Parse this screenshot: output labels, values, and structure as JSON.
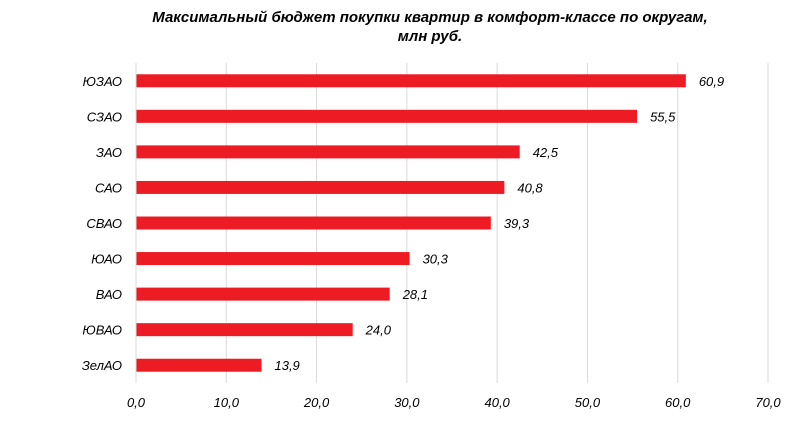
{
  "chart_data": {
    "type": "bar",
    "orientation": "horizontal",
    "title_line1": "Максимальный бюджет покупки квартир в комфорт-классе по округам,",
    "title_line2": "млн руб.",
    "categories": [
      "ЮЗАО",
      "СЗАО",
      "ЗАО",
      "САО",
      "СВАО",
      "ЮАО",
      "ВАО",
      "ЮВАО",
      "ЗелАО"
    ],
    "values": [
      60.9,
      55.5,
      42.5,
      40.8,
      39.3,
      30.3,
      28.1,
      24.0,
      13.9
    ],
    "value_labels": [
      "60,9",
      "55,5",
      "42,5",
      "40,8",
      "39,3",
      "30,3",
      "28,1",
      "24,0",
      "13,9"
    ],
    "xlim": [
      0,
      70
    ],
    "xticks": [
      0,
      10,
      20,
      30,
      40,
      50,
      60,
      70
    ],
    "xtick_labels": [
      "0,0",
      "10,0",
      "20,0",
      "30,0",
      "40,0",
      "50,0",
      "60,0",
      "70,0"
    ],
    "grid": true,
    "bar_color": "#ed1c24",
    "grid_color": "#d9d9d9"
  }
}
